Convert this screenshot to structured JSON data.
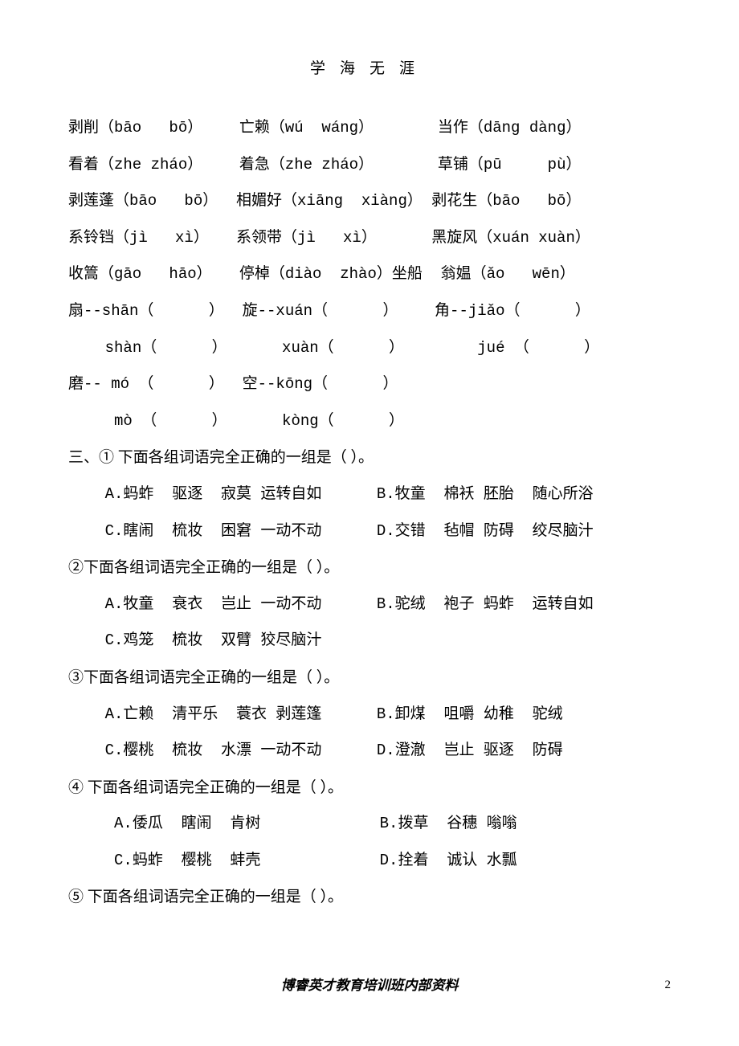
{
  "header": "学海无涯",
  "lines": [
    "剥削（bāo   bō）    亡赖（wú  wáng）       当作（dāng dàng）",
    "看着（zhe zháo）    着急（zhe zháo）       草铺（pū     pù）",
    "剥莲蓬（bāo   bō）  相媚好（xiāng  xiàng） 剥花生（bāo   bō）",
    "系铃铛（jì   xì）   系领带（jì   xì）      黑旋风（xuán xuàn）",
    "收篙（gāo   hāo）   停棹（diào  zhào）坐船  翁媪（ǎo   wēn）",
    "扇--shān（      ）  旋--xuán（      ）    角--jiǎo（      ）",
    "    shàn（      ）      xuàn（      ）        jué （      ）",
    "磨-- mó （      ）  空--kōng（      ）",
    "     mò （      ）      kòng（      ）"
  ],
  "q3": {
    "title": "三、① 下面各组词语完全正确的一组是（  ）。",
    "items": [
      "    A.蚂蚱  驱逐  寂莫 运转自如      B.牧童  棉袄 胚胎  随心所浴",
      "    C.瞎闹  梳妆  困窘 一动不动      D.交错  毡帽 防碍  绞尽脑汁"
    ]
  },
  "q3_2": {
    "title": "②下面各组词语完全正确的一组是（  ）。",
    "items": [
      "    A.牧童  衰衣  岂止 一动不动      B.驼绒  袍子 蚂蚱  运转自如",
      "    C.鸡笼  梳妆  双臂 狡尽脑汁"
    ]
  },
  "q3_3": {
    "title": "③下面各组词语完全正确的一组是（  ）。",
    "items": [
      "    A.亡赖  清平乐  蓑衣 剥莲篷      B.卸煤  咀嚼 幼稚  驼绒",
      "    C.樱桃  梳妆  水漂 一动不动      D.澄澈  岂止 驱逐  防碍"
    ]
  },
  "q3_4": {
    "title": " ④ 下面各组词语完全正确的一组是（  ）。",
    "items": [
      "     A.倭瓜  瞎闹  肯树             B.拨草  谷穗 嗡嗡",
      "     C.蚂蚱  樱桃  蚌壳             D.拴着  诚认 水瓢"
    ]
  },
  "q3_5": {
    "title": "⑤ 下面各组词语完全正确的一组是（  ）。"
  },
  "footer": "博睿英才教育培训班内部资料",
  "page_number": "2"
}
